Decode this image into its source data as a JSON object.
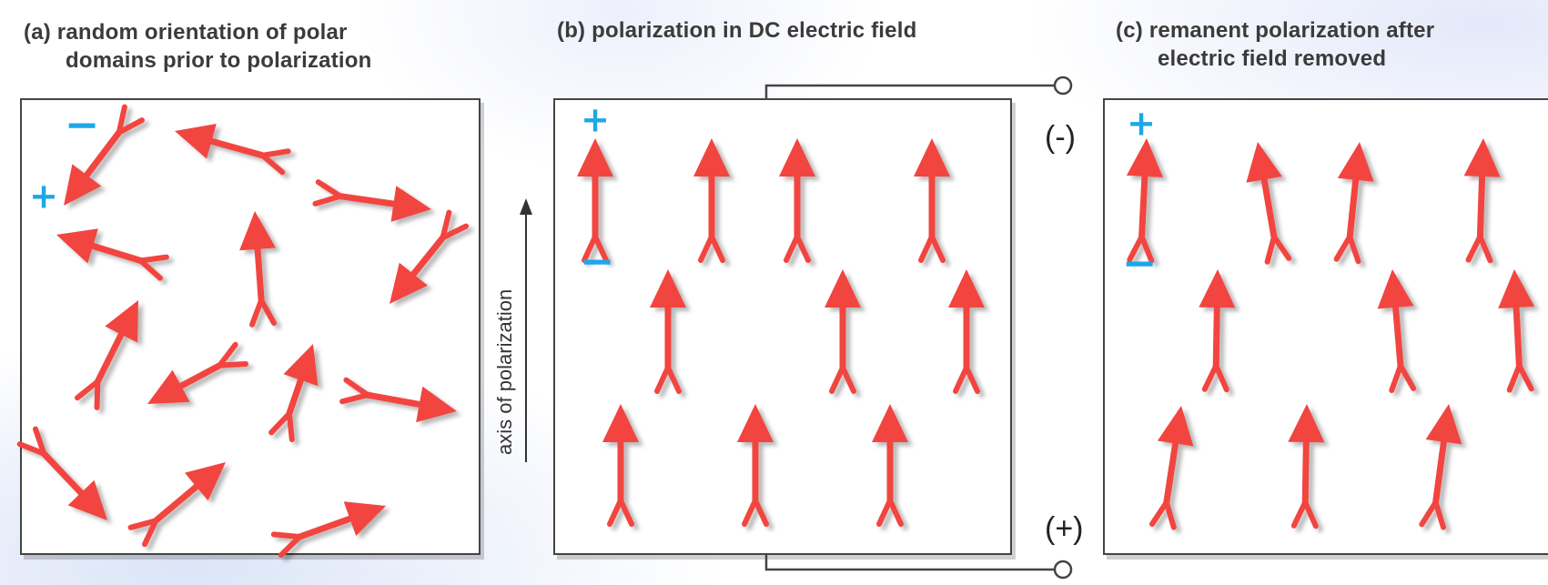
{
  "captions": {
    "a_line1": "(a) random orientation of polar",
    "a_line2": "domains prior to polarization",
    "b_line1": "(b) polarization in DC electric field",
    "c_line1": "(c) remanent polarization after",
    "c_line2": "electric field removed"
  },
  "axis_label": "axis of polarization",
  "electrode_labels": {
    "negative": "(-)",
    "positive": "(+)"
  },
  "signs": {
    "plus": "+",
    "minus": "−"
  },
  "colors": {
    "arrow": "#f24440",
    "sign": "#1ea7e8",
    "frame": "#444444"
  }
}
